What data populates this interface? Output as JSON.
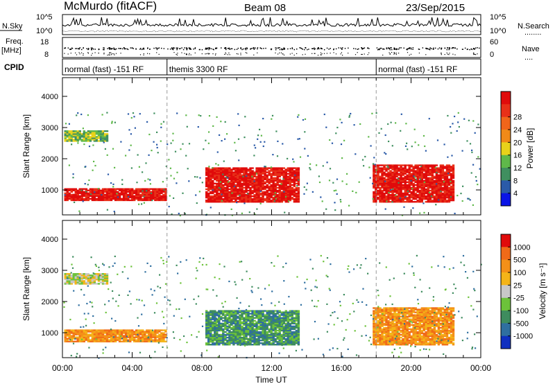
{
  "header": {
    "station": "McMurdo (fitACF)",
    "beam": "Beam 08",
    "date": "23/Sep/2015"
  },
  "status_panel": {
    "nsky_label": "N.Sky",
    "nsearch_label": "N.Search",
    "nsearch_marker": "........",
    "freq_label": "Freq.",
    "freq_unit": "[MHz]",
    "nave_label": "Nave",
    "nave_marker": "....",
    "cpid_label": "CPID",
    "nsky_ticks": [
      "10^5",
      "10^0"
    ],
    "nsky_right_ticks": [
      "10^5",
      "10^0"
    ],
    "freq_ticks": [
      "18",
      "8"
    ],
    "nave_ticks": [
      "60",
      "0"
    ],
    "cpid_segments": [
      {
        "label": "normal (fast)  -151 RF",
        "start_h": 0,
        "end_h": 6
      },
      {
        "label": "themis 3300 RF",
        "start_h": 6,
        "end_h": 18
      },
      {
        "label": "normal (fast)  -151 RF",
        "start_h": 18,
        "end_h": 24
      }
    ]
  },
  "chart_data": [
    {
      "type": "heatmap",
      "title": "",
      "xlabel": "",
      "ylabel": "Slant Range [km]",
      "xlim_hours": [
        0,
        24
      ],
      "ylim": [
        200,
        4600
      ],
      "yticks": [
        1000,
        2000,
        3000,
        4000
      ],
      "colorbar": {
        "label": "Power [dB]",
        "ticks": [
          "4",
          "8",
          "12",
          "16",
          "20",
          "24",
          "28"
        ],
        "colors": [
          "#0a14e6",
          "#2a5aa8",
          "#3f8f5f",
          "#5fb84a",
          "#e8d21a",
          "#f08a18",
          "#f0651a",
          "#e83018",
          "#e00b0b"
        ]
      },
      "echo_regions": [
        {
          "t0": 0.1,
          "t1": 5.9,
          "r0": 650,
          "r1": 1050,
          "level": 8
        },
        {
          "t0": 0.1,
          "t1": 2.6,
          "r0": 2550,
          "r1": 2900,
          "level": 3
        },
        {
          "t0": 8.2,
          "t1": 13.5,
          "r0": 600,
          "r1": 1700,
          "level": 8
        },
        {
          "t0": 17.8,
          "t1": 22.4,
          "r0": 600,
          "r1": 1800,
          "level": 8
        }
      ]
    },
    {
      "type": "heatmap",
      "title": "",
      "xlabel": "Time UT",
      "ylabel": "Slant Range [km]",
      "xlim_hours": [
        0,
        24
      ],
      "ylim": [
        200,
        4600
      ],
      "yticks": [
        1000,
        2000,
        3000,
        4000
      ],
      "xticks": [
        "00:00",
        "04:00",
        "08:00",
        "12:00",
        "16:00",
        "20:00",
        "00:00"
      ],
      "colorbar": {
        "label": "Velocity [m s⁻¹]",
        "ticks": [
          "1000",
          "500",
          "100",
          "25",
          "-25",
          "-100",
          "-500",
          "-1000"
        ],
        "colors": [
          "#1030c0",
          "#2f6fa0",
          "#3e8c5e",
          "#6cc23a",
          "#c8c8c8",
          "#f4b418",
          "#f49018",
          "#f06a18",
          "#e00b0b"
        ]
      },
      "echo_regions": [
        {
          "t0": 0.1,
          "t1": 5.9,
          "r0": 700,
          "r1": 1100,
          "level": 6
        },
        {
          "t0": 0.1,
          "t1": 2.6,
          "r0": 2550,
          "r1": 2900,
          "level": 4
        },
        {
          "t0": 8.2,
          "t1": 13.5,
          "r0": 600,
          "r1": 1700,
          "level": 2
        },
        {
          "t0": 17.8,
          "t1": 22.4,
          "r0": 600,
          "r1": 1800,
          "level": 6
        }
      ]
    }
  ]
}
